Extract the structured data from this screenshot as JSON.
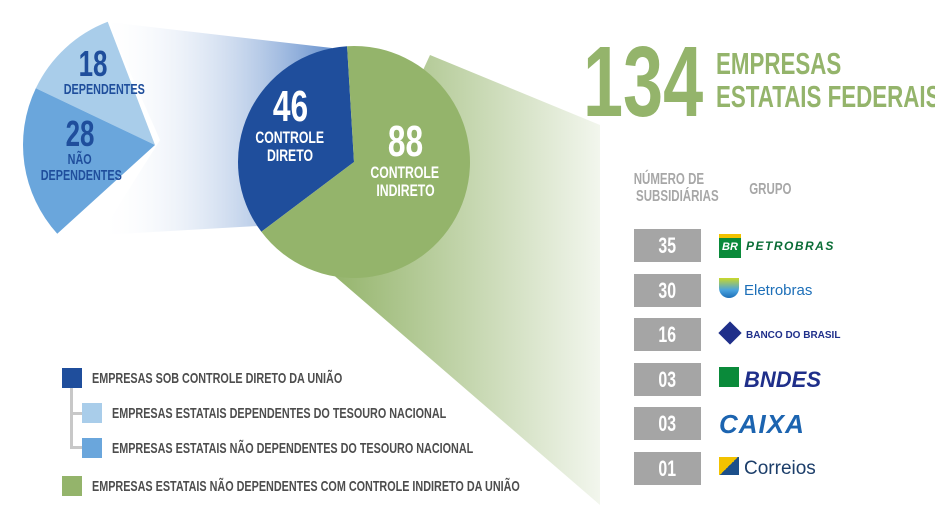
{
  "header": {
    "total": "134",
    "title_line1": "EMPRESAS",
    "title_line2": "ESTATAIS FEDERAIS"
  },
  "table": {
    "col_count": "NÚMERO DE",
    "col_count2": "SUBSIDIÁRIAS",
    "col_group": "GRUPO",
    "rows": [
      {
        "count": "35",
        "group": "PETROBRAS",
        "icon": "br-logo-icon"
      },
      {
        "count": "30",
        "group": "Eletrobras",
        "icon": "eletrobras-logo-icon"
      },
      {
        "count": "16",
        "group": "BANCO DO BRASIL",
        "icon": "bb-logo-icon"
      },
      {
        "count": "03",
        "group": "BNDES",
        "icon": "bndes-logo-icon"
      },
      {
        "count": "03",
        "group": "CAIXA",
        "icon": "caixa-logo-icon"
      },
      {
        "count": "01",
        "group": "Correios",
        "icon": "correios-logo-icon"
      }
    ]
  },
  "legend": [
    {
      "label": "EMPRESAS SOB CONTROLE DIRETO DA UNIÃO",
      "color": "#1f4e9c"
    },
    {
      "label": "EMPRESAS ESTATAIS DEPENDENTES DO TESOURO NACIONAL",
      "color": "#a9cdea"
    },
    {
      "label": "EMPRESAS ESTATAIS NÃO DEPENDENTES DO TESOURO NACIONAL",
      "color": "#6aa6dc"
    },
    {
      "label": "EMPRESAS ESTATAIS NÃO DEPENDENTES COM CONTROLE INDIRETO DA UNIÃO",
      "color": "#94b46b"
    }
  ],
  "chart_data": [
    {
      "type": "pie",
      "title": "134 Empresas Estatais Federais",
      "slices": [
        {
          "value": 46,
          "label_num": "46",
          "label_1": "CONTROLE",
          "label_2": "DIRETO",
          "color": "#1f4e9c"
        },
        {
          "value": 88,
          "label_num": "88",
          "label_1": "CONTROLE",
          "label_2": "INDIRETO",
          "color": "#94b46b"
        }
      ]
    },
    {
      "type": "pie",
      "title": "Controle direto (46)",
      "slices": [
        {
          "value": 18,
          "label_num": "18",
          "label_1": "DEPENDENTES",
          "color": "#a9cdea"
        },
        {
          "value": 28,
          "label_num": "28",
          "label_1": "NÃO",
          "label_2": "DEPENDENTES",
          "color": "#6aa6dc"
        }
      ]
    }
  ]
}
